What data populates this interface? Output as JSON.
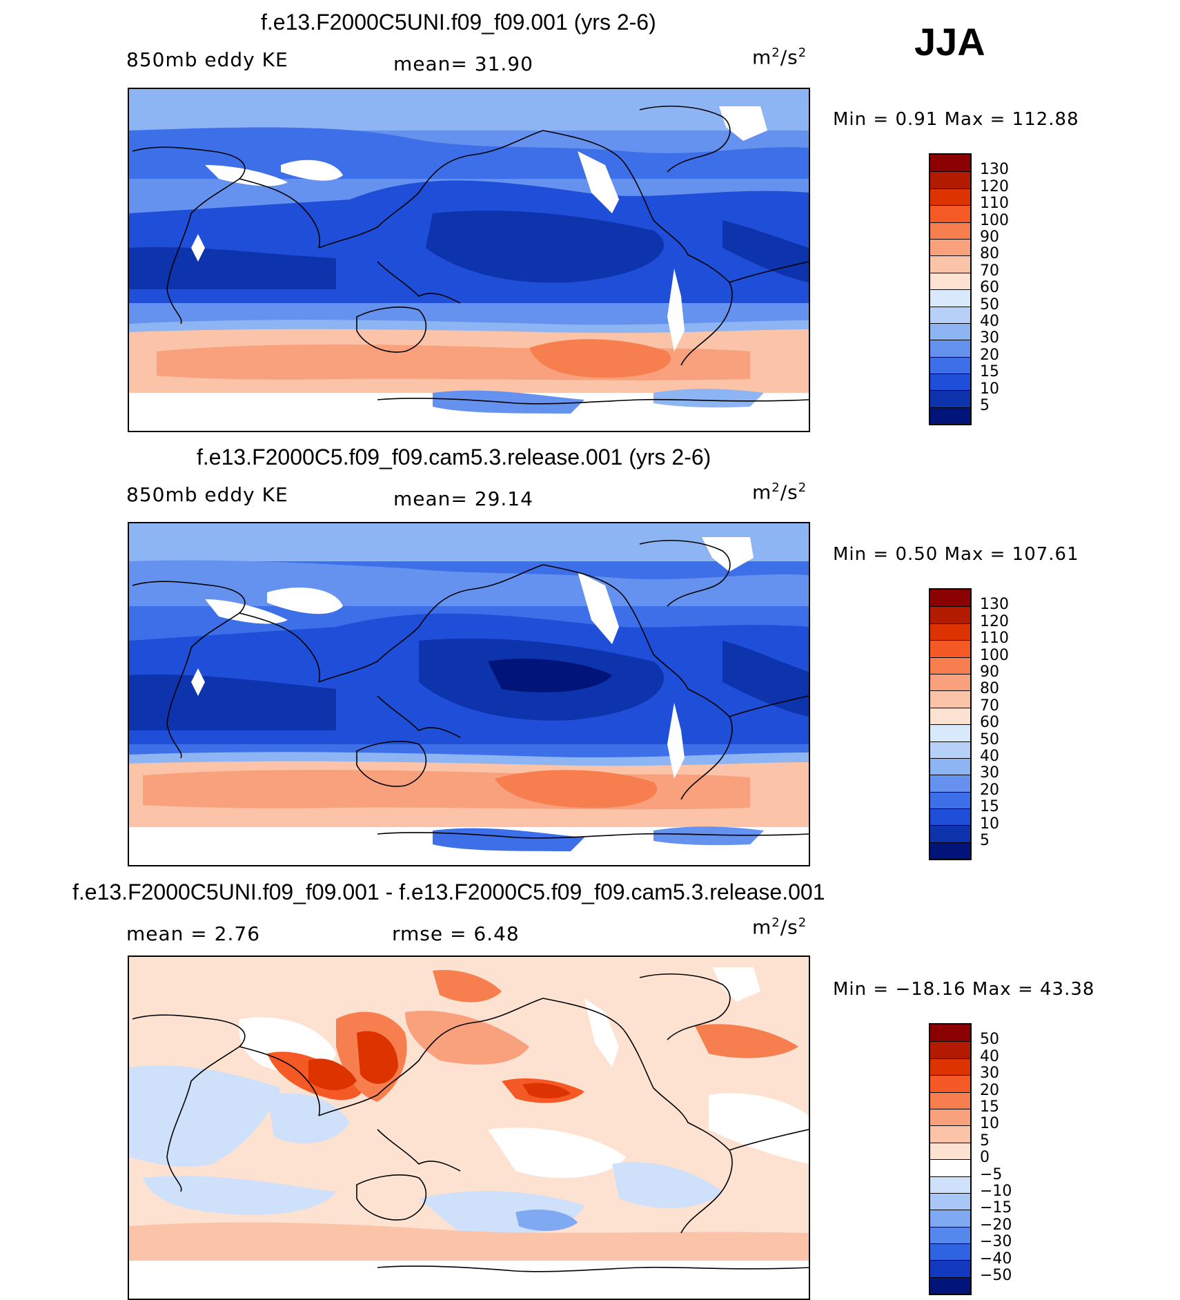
{
  "season": "JJA",
  "panels": [
    {
      "title": "f.e13.F2000C5UNI.f09_f09.001 (yrs 2-6)",
      "left_label": "850mb eddy KE",
      "center_label": "mean=   31.90",
      "units_base": "m",
      "units_exp1": "2",
      "units_mid": "/s",
      "units_exp2": "2",
      "minmax": "Min  =    0.91  Max  =  112.88",
      "levels": [
        "130",
        "120",
        "110",
        "100",
        "90",
        "80",
        "70",
        "60",
        "50",
        "40",
        "30",
        "20",
        "15",
        "10",
        "5"
      ],
      "colors": [
        "#8b0000",
        "#b31b00",
        "#dc3300",
        "#f55a26",
        "#f77e4f",
        "#f9a07d",
        "#fbc3a8",
        "#fde2d2",
        "#d8e9fb",
        "#b6d0f8",
        "#8db4f3",
        "#6592ee",
        "#3c6fe8",
        "#1f4ed8",
        "#0d33ad",
        "#00147a"
      ]
    },
    {
      "title": "f.e13.F2000C5.f09_f09.cam5.3.release.001 (yrs 2-6)",
      "left_label": "850mb eddy KE",
      "center_label": "mean=   29.14",
      "units_base": "m",
      "units_exp1": "2",
      "units_mid": "/s",
      "units_exp2": "2",
      "minmax": "Min  =    0.50  Max  =  107.61",
      "levels": [
        "130",
        "120",
        "110",
        "100",
        "90",
        "80",
        "70",
        "60",
        "50",
        "40",
        "30",
        "20",
        "15",
        "10",
        "5"
      ],
      "colors": [
        "#8b0000",
        "#b31b00",
        "#dc3300",
        "#f55a26",
        "#f77e4f",
        "#f9a07d",
        "#fbc3a8",
        "#fde2d2",
        "#d8e9fb",
        "#b6d0f8",
        "#8db4f3",
        "#6592ee",
        "#3c6fe8",
        "#1f4ed8",
        "#0d33ad",
        "#00147a"
      ]
    },
    {
      "title": "f.e13.F2000C5UNI.f09_f09.001 - f.e13.F2000C5.f09_f09.cam5.3.release.001",
      "left_label": "mean  =     2.76",
      "center_label": "rmse  =     6.48",
      "units_base": "m",
      "units_exp1": "2",
      "units_mid": "/s",
      "units_exp2": "2",
      "minmax": "Min  = −18.16  Max  =    43.38",
      "levels": [
        "50",
        "40",
        "30",
        "20",
        "15",
        "10",
        "5",
        "0",
        "−5",
        "−10",
        "−15",
        "−20",
        "−30",
        "−40",
        "−50"
      ],
      "colors": [
        "#8b0000",
        "#b31b00",
        "#dc3300",
        "#f55a26",
        "#f77e4f",
        "#f9a07d",
        "#fbc3a8",
        "#fde2d2",
        "#ffffff",
        "#cfe0fb",
        "#a9c7f6",
        "#7fa9f1",
        "#5588ec",
        "#2e63e2",
        "#1339c0",
        "#00147a"
      ]
    }
  ]
}
